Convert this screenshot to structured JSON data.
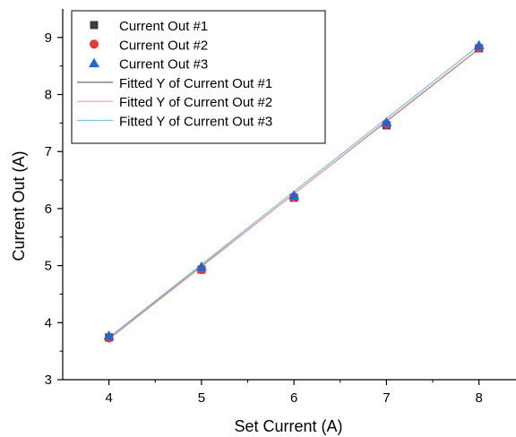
{
  "chart_data": {
    "type": "scatter",
    "title": "",
    "xlabel": "Set Current (A)",
    "ylabel": "Current Out (A)",
    "xlim": [
      3.5,
      8.4
    ],
    "ylim": [
      3,
      9.5
    ],
    "xticks": [
      4,
      5,
      6,
      7,
      8
    ],
    "yticks": [
      3,
      4,
      5,
      6,
      7,
      8,
      9
    ],
    "grid": false,
    "legend_position": "top-left",
    "x": [
      4,
      5,
      6,
      7,
      8
    ],
    "series": [
      {
        "name": "Current Out #1",
        "marker": "square",
        "color": "#3d3d3d",
        "values": [
          3.74,
          4.93,
          6.19,
          7.46,
          8.81
        ]
      },
      {
        "name": "Current Out #2",
        "marker": "circle",
        "color": "#e8363a",
        "values": [
          3.73,
          4.93,
          6.2,
          7.48,
          8.82
        ]
      },
      {
        "name": "Current Out #3",
        "marker": "triangle",
        "color": "#2465d4",
        "values": [
          3.77,
          4.98,
          6.23,
          7.51,
          8.86
        ]
      }
    ],
    "fits": [
      {
        "name": "Fitted Y of Current Out #1",
        "color": "#6e6e6e",
        "values": [
          3.72,
          4.99,
          6.26,
          7.53,
          8.8
        ]
      },
      {
        "name": "Fitted Y of Current Out #2",
        "color": "#f0a0a0",
        "values": [
          3.71,
          4.98,
          6.26,
          7.54,
          8.81
        ]
      },
      {
        "name": "Fitted Y of Current Out #3",
        "color": "#7ac0e8",
        "values": [
          3.74,
          5.02,
          6.3,
          7.58,
          8.86
        ]
      }
    ]
  }
}
